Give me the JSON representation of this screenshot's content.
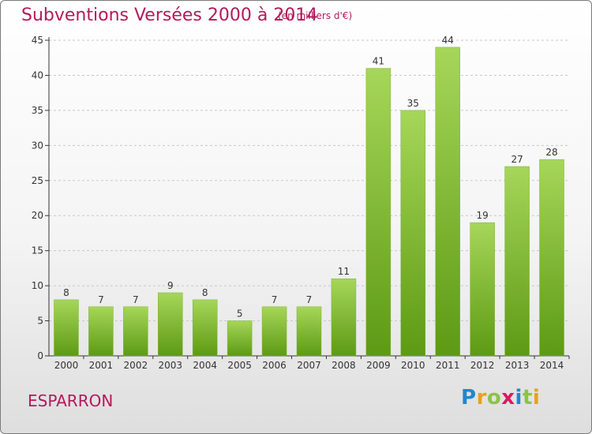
{
  "header": {
    "title": "Subventions Versées 2000 à 2014",
    "unit_note": "(en milliers d'€)"
  },
  "footer": {
    "commune": "ESPARRON",
    "logo_text": [
      "P",
      "r",
      "o",
      "x",
      "i",
      "t",
      "i"
    ]
  },
  "colors": {
    "accent": "#b21a5b",
    "bar_top": "#a6d65a",
    "bar_bottom": "#5d9a14",
    "axis": "#333333",
    "grid": "#c8c8c8"
  },
  "chart_data": {
    "type": "bar",
    "title": "Subventions Versées 2000 à 2014",
    "subtitle": "(en milliers d'€)",
    "xlabel": "",
    "ylabel": "",
    "categories": [
      "2000",
      "2001",
      "2002",
      "2003",
      "2004",
      "2005",
      "2006",
      "2007",
      "2008",
      "2009",
      "2010",
      "2011",
      "2012",
      "2013",
      "2014"
    ],
    "values": [
      8,
      7,
      7,
      9,
      8,
      5,
      7,
      7,
      11,
      41,
      35,
      44,
      19,
      27,
      28
    ],
    "ylim": [
      0,
      45
    ],
    "yticks": [
      0,
      5,
      10,
      15,
      20,
      25,
      30,
      35,
      40,
      45
    ],
    "grid": "dashed horizontal",
    "legend": "none",
    "data_labels": true
  }
}
